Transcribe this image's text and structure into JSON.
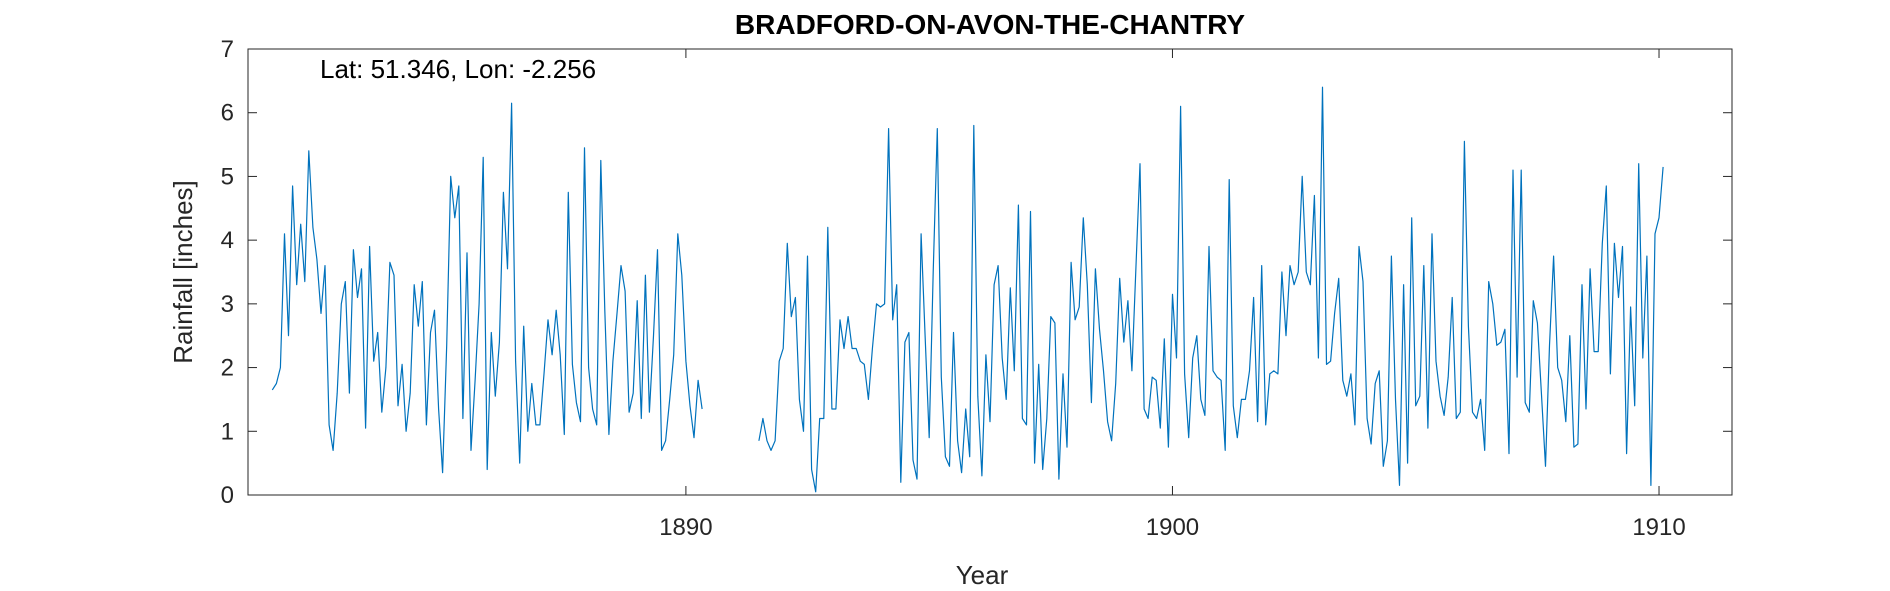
{
  "chart_data": {
    "type": "line",
    "title": "BRADFORD-ON-AVON-THE-CHANTRY",
    "xlabel": "Year",
    "ylabel": "Rainfall [inches]",
    "annotation": "Lat: 51.346, Lon: -2.256",
    "xlim": [
      1881,
      1911.5
    ],
    "ylim": [
      0,
      7
    ],
    "xticks": [
      1890,
      1900,
      1910
    ],
    "yticks": [
      0,
      1,
      2,
      3,
      4,
      5,
      6,
      7
    ],
    "grid": false,
    "line_color": "#0072BD",
    "series": [
      {
        "segments": [
          {
            "start": 1881.5,
            "values": [
              1.65,
              1.75,
              2.0,
              4.1,
              2.5,
              4.85,
              3.3,
              4.25,
              3.35,
              5.4,
              4.2,
              3.7,
              2.85,
              3.6,
              1.1,
              0.7,
              1.6,
              3.0,
              3.35,
              1.6,
              3.85,
              3.1,
              3.55,
              1.05,
              3.9,
              2.1,
              2.55,
              1.3,
              2.0,
              3.65,
              3.45,
              1.4,
              2.05,
              1.0,
              1.6,
              3.3,
              2.65,
              3.35,
              1.1,
              2.55,
              2.9,
              1.35,
              0.35,
              2.35,
              5.0,
              4.35,
              4.85,
              1.2,
              3.8,
              0.7,
              1.8,
              3.0,
              5.3,
              0.4,
              2.55,
              1.55,
              2.4,
              4.75,
              3.55,
              6.15,
              2.1,
              0.5,
              2.65,
              1.0,
              1.75,
              1.1,
              1.1,
              1.9,
              2.75,
              2.2,
              2.9,
              2.2,
              0.95,
              4.75,
              2.05,
              1.45,
              1.15,
              5.45,
              2.0,
              1.35,
              1.1,
              5.25,
              2.9,
              0.95,
              2.1,
              2.85,
              3.6,
              3.2,
              1.3,
              1.6,
              3.05,
              1.2,
              3.45,
              1.3,
              2.5,
              3.85,
              0.7,
              0.85,
              1.5,
              2.2,
              4.1,
              3.45,
              2.1,
              1.4,
              0.9,
              1.8,
              1.35
            ]
          },
          {
            "start": 1891.5,
            "values": [
              0.85,
              1.2,
              0.85,
              0.7,
              0.85,
              2.1,
              2.3,
              3.95,
              2.8,
              3.1,
              1.5,
              1.0,
              3.75,
              0.4,
              0.05,
              1.2,
              1.2,
              4.2,
              1.35,
              1.35,
              2.75,
              2.3,
              2.8,
              2.3,
              2.3,
              2.1,
              2.05,
              1.5,
              2.3,
              3.0,
              2.95,
              3.0,
              5.75,
              2.75,
              3.3,
              0.2,
              2.4,
              2.55,
              0.55,
              0.25,
              4.1,
              2.5,
              0.9,
              3.5,
              5.75,
              1.85,
              0.6,
              0.45,
              2.55,
              0.85,
              0.35,
              1.35,
              0.6,
              5.8,
              1.55,
              0.3,
              2.2,
              1.15,
              3.3,
              3.6,
              2.15,
              1.5,
              3.25,
              1.95,
              4.55,
              1.2,
              1.1,
              4.45,
              0.5,
              2.05,
              0.4,
              1.2,
              2.8,
              2.7,
              0.25,
              1.9,
              0.75,
              3.65,
              2.75,
              2.95,
              4.35,
              3.3,
              1.45,
              3.55,
              2.6,
              1.95,
              1.15,
              0.85,
              1.75,
              3.4,
              2.4,
              3.05,
              1.95,
              3.6,
              5.2,
              1.35,
              1.2,
              1.85,
              1.8,
              1.05,
              2.45,
              0.75,
              3.15,
              2.15,
              6.1,
              1.9,
              0.9,
              2.15,
              2.5,
              1.5,
              1.25,
              3.9,
              1.95,
              1.85,
              1.8,
              0.7,
              4.95,
              1.4,
              0.9,
              1.5,
              1.5,
              1.95,
              3.1,
              1.15,
              3.6,
              1.1,
              1.9,
              1.95,
              1.9,
              3.5,
              2.5,
              3.6,
              3.3,
              3.5,
              5.0,
              3.5,
              3.3,
              4.7,
              2.15,
              6.4,
              2.05,
              2.1,
              2.85,
              3.4,
              1.8,
              1.55,
              1.9,
              1.1,
              3.9,
              3.35,
              1.2,
              0.8,
              1.75,
              1.95,
              0.45,
              0.85,
              3.75,
              1.5,
              0.15,
              3.3,
              0.5,
              4.35,
              1.4,
              1.55,
              3.6,
              1.05,
              4.1,
              2.1,
              1.55,
              1.25,
              1.85,
              3.1,
              1.2,
              1.3,
              5.55,
              2.65,
              1.3,
              1.2,
              1.5,
              0.7,
              3.35,
              3.0,
              2.35,
              2.4,
              2.6,
              0.65,
              5.1,
              1.85,
              5.1,
              1.45,
              1.3,
              3.05,
              2.7,
              1.6,
              0.45,
              2.35,
              3.75,
              2.0,
              1.8,
              1.15,
              2.5,
              0.75,
              0.8,
              3.3,
              1.35,
              3.55,
              2.25,
              2.25,
              3.95,
              4.85,
              1.9,
              3.95,
              3.1,
              3.9,
              0.65,
              2.95,
              1.4,
              5.2,
              2.15,
              3.75,
              0.15,
              4.1,
              4.35,
              5.15
            ]
          }
        ]
      }
    ]
  }
}
